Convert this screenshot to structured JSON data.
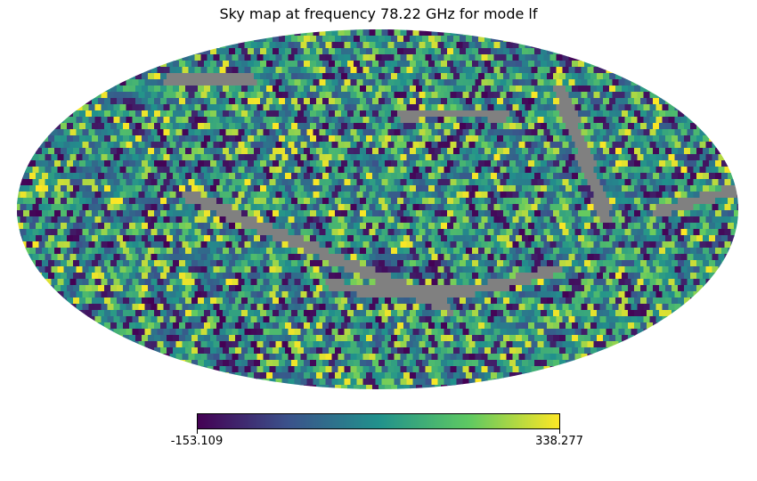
{
  "chart_data": {
    "type": "heatmap",
    "projection": "mollweide",
    "title": "Sky map at frequency 78.22 GHz for mode lf",
    "colormap": "viridis",
    "colorbar": {
      "min": -153.109,
      "max": 338.277,
      "min_label": "-153.109",
      "max_label": "338.277",
      "orientation": "horizontal"
    },
    "masked_color": "#808080",
    "colormap_stops": [
      "#440154",
      "#3b528b",
      "#21918c",
      "#5ec962",
      "#fde725"
    ]
  }
}
